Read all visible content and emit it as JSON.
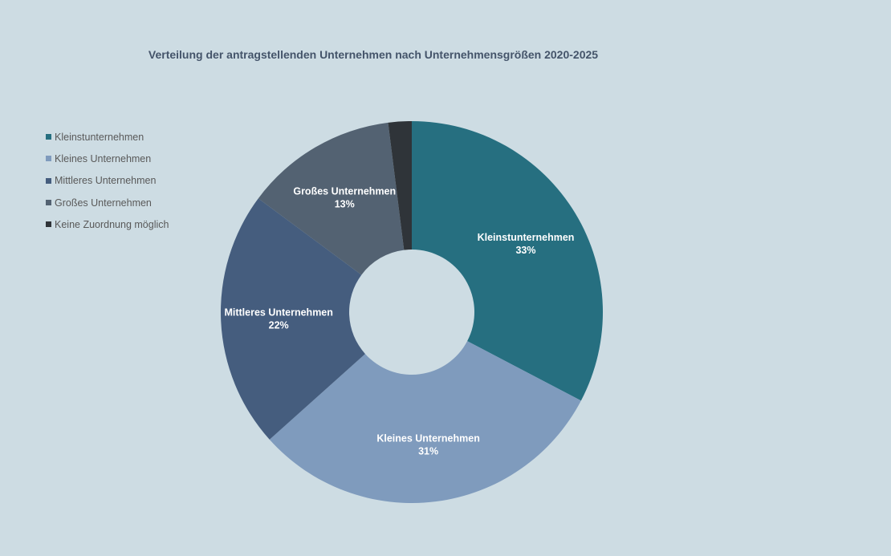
{
  "chart_data": {
    "type": "pie",
    "title": "Verteilung der antragstellenden Unternehmen nach Unternehmensgrößen 2020-2025",
    "legend_position": "left",
    "categories": [
      "Kleinstunternehmen",
      "Kleines Unternehmen",
      "Mittleres Unternehmen",
      "Großes Unternehmen",
      "Keine Zuordnung möglich"
    ],
    "values": [
      33,
      31,
      22,
      13,
      2
    ],
    "colors": [
      "#266f80",
      "#7f9bbd",
      "#455d7e",
      "#536272",
      "#2f3439"
    ],
    "data_labels": [
      {
        "name": "Kleinstunternehmen",
        "value": "33%"
      },
      {
        "name": "Kleines Unternehmen",
        "value": "31%"
      },
      {
        "name": "Mittleres Unternehmen",
        "value": "22%"
      },
      {
        "name": "Großes Unternehmen",
        "value": "13%"
      }
    ]
  }
}
